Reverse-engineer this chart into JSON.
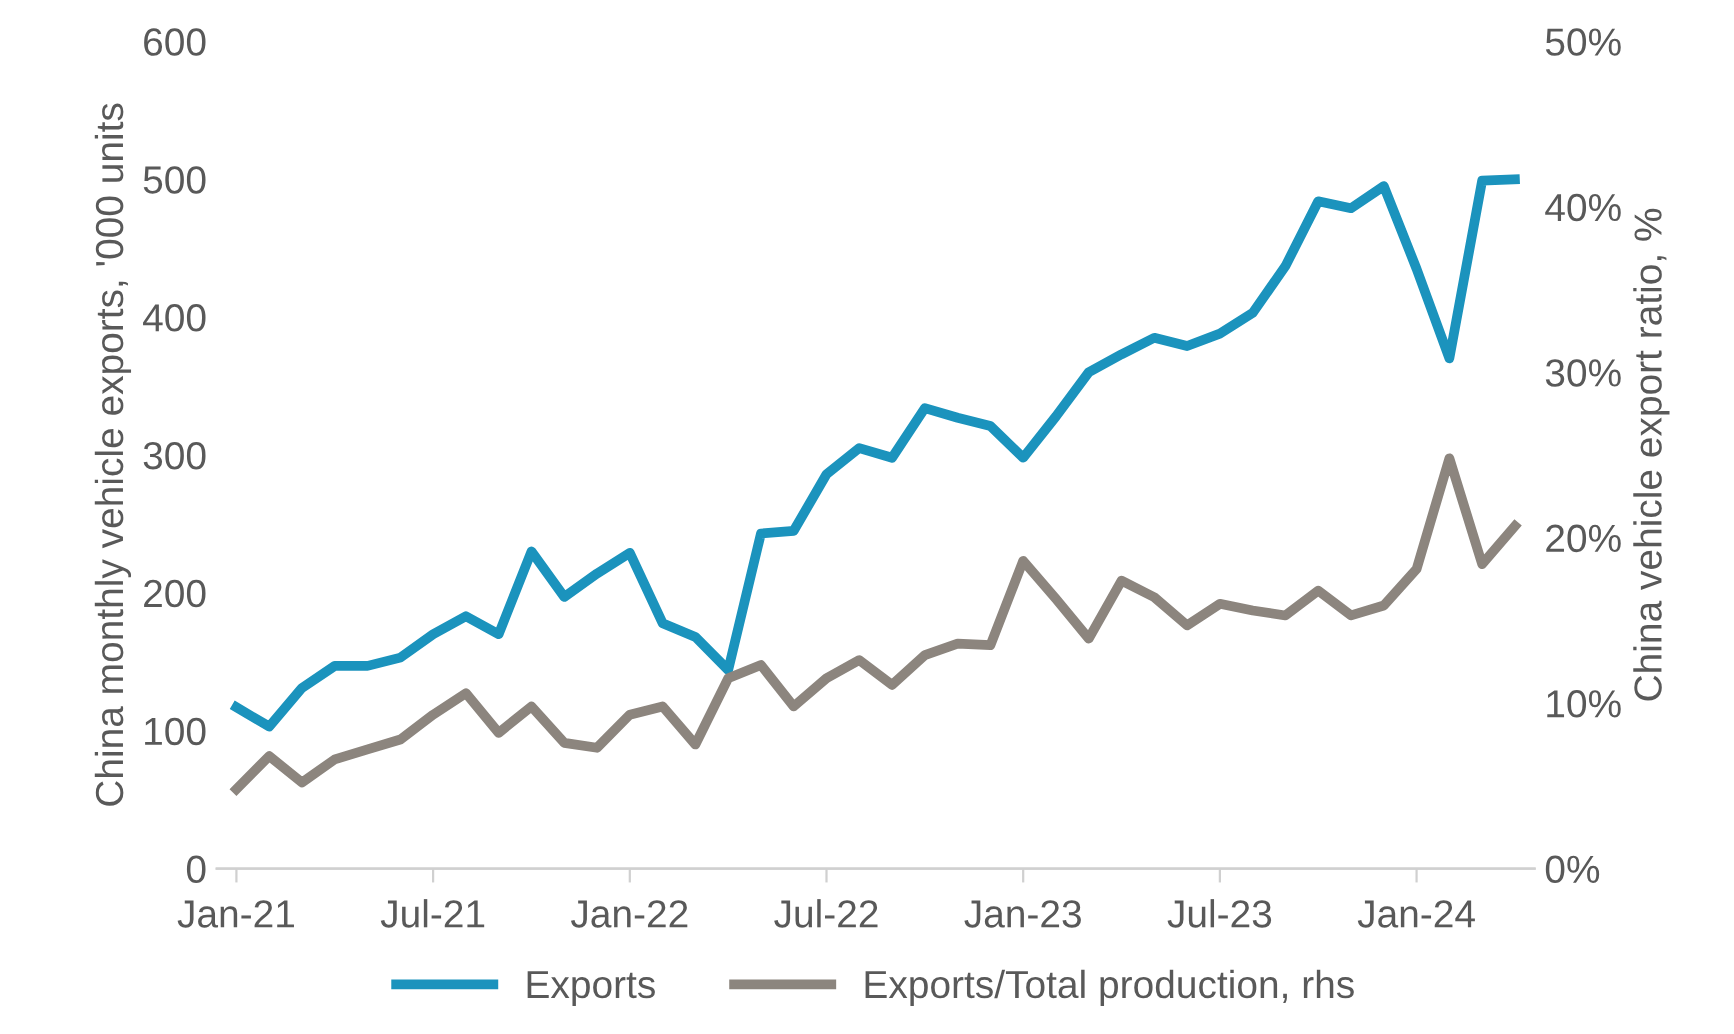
{
  "chart_data": {
    "type": "line",
    "categories": [
      "Jan-21",
      null,
      null,
      null,
      null,
      null,
      "Jul-21",
      null,
      null,
      null,
      null,
      null,
      "Jan-22",
      null,
      null,
      null,
      null,
      null,
      "Jul-22",
      null,
      null,
      null,
      null,
      null,
      "Jan-23",
      null,
      null,
      null,
      null,
      null,
      "Jul-23",
      null,
      null,
      null,
      null,
      null,
      "Jan-24",
      null,
      null,
      null
    ],
    "ylabel": "China monthly vehicle exports, '000 units",
    "y2label": "China vehicle export ratio, %",
    "ylim": [
      0,
      600
    ],
    "yticks": [
      0,
      100,
      200,
      300,
      400,
      500,
      600
    ],
    "y2lim": [
      0,
      50
    ],
    "y2ticks": [
      {
        "value": 0,
        "label": "0%"
      },
      {
        "value": 10,
        "label": "10%"
      },
      {
        "value": 20,
        "label": "20%"
      },
      {
        "value": 30,
        "label": "30%"
      },
      {
        "value": 40,
        "label": "40%"
      },
      {
        "value": 50,
        "label": "50%"
      }
    ],
    "grid": false,
    "legend": "bottom",
    "marker": "none",
    "line_style": "solid",
    "series": [
      {
        "name": "Exports",
        "color": "#1b93bd",
        "values": [
          117,
          103,
          131,
          147,
          147,
          153,
          170,
          183,
          170,
          230,
          197,
          214,
          229,
          178,
          168,
          144,
          243,
          245,
          286,
          305,
          298,
          334,
          327,
          321,
          298,
          328,
          360,
          373,
          385,
          379,
          388,
          403,
          437,
          484,
          479,
          495,
          435,
          370,
          499,
          500
        ]
      },
      {
        "name": "Exports/Total production, rhs",
        "color": "#8c857e",
        "axis": "y2",
        "values": [
          4.8,
          6.8,
          5.2,
          6.6,
          7.2,
          7.8,
          9.3,
          10.6,
          8.2,
          9.8,
          7.6,
          7.3,
          9.3,
          9.8,
          7.5,
          11.5,
          12.3,
          9.8,
          11.5,
          12.6,
          11.1,
          12.9,
          13.6,
          13.5,
          18.6,
          16.3,
          13.9,
          17.4,
          16.4,
          14.7,
          16.0,
          15.6,
          15.3,
          16.8,
          15.3,
          15.9,
          18.1,
          24.8,
          18.4,
          20.7
        ]
      }
    ]
  }
}
